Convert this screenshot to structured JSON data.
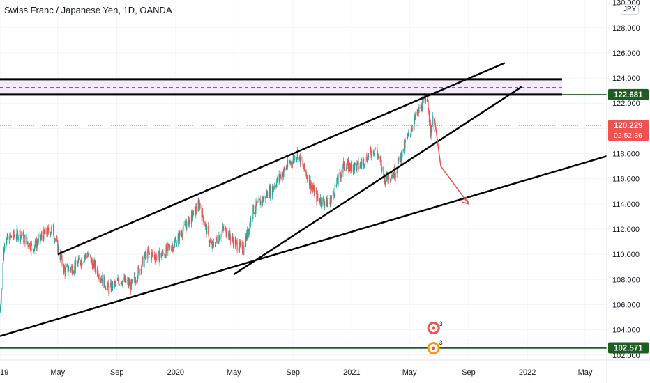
{
  "chart_data": {
    "type": "candlestick",
    "title": "Swiss Franc / Japanese Yen, 1D, OANDA",
    "currency_badge": "JPY",
    "y_range": [
      101.6,
      130.2
    ],
    "x_range": [
      "2019-01-01",
      "2022-06-15"
    ],
    "y_ticks": [
      "128.000",
      "126.000",
      "124.000",
      "122.000",
      "120.000",
      "118.000",
      "116.000",
      "114.000",
      "112.000",
      "110.000",
      "108.000",
      "106.000",
      "104.000",
      "102.000"
    ],
    "y_top_label": "130.000",
    "x_ticks": [
      {
        "label": "19",
        "date": "2019-01-01"
      },
      {
        "label": "May",
        "date": "2019-05-01"
      },
      {
        "label": "Sep",
        "date": "2019-09-01"
      },
      {
        "label": "2020",
        "date": "2020-01-01"
      },
      {
        "label": "May",
        "date": "2020-05-01"
      },
      {
        "label": "Sep",
        "date": "2020-09-01"
      },
      {
        "label": "2021",
        "date": "2021-01-01"
      },
      {
        "label": "May",
        "date": "2021-05-01"
      },
      {
        "label": "Sep",
        "date": "2021-09-01"
      },
      {
        "label": "2022",
        "date": "2022-01-01"
      },
      {
        "label": "May",
        "date": "2022-05-01"
      }
    ],
    "price_path": [
      [
        "2019-01-01",
        105.5
      ],
      [
        "2019-01-10",
        111.0
      ],
      [
        "2019-02-10",
        111.7
      ],
      [
        "2019-03-10",
        110.5
      ],
      [
        "2019-04-01",
        111.5
      ],
      [
        "2019-04-20",
        112.0
      ],
      [
        "2019-05-15",
        108.7
      ],
      [
        "2019-06-05",
        109.0
      ],
      [
        "2019-07-01",
        110.0
      ],
      [
        "2019-08-15",
        107.2
      ],
      [
        "2019-09-10",
        108.0
      ],
      [
        "2019-10-01",
        107.5
      ],
      [
        "2019-11-01",
        110.0
      ],
      [
        "2019-12-01",
        109.8
      ],
      [
        "2020-01-01",
        111.0
      ],
      [
        "2020-02-20",
        114.0
      ],
      [
        "2020-03-15",
        110.5
      ],
      [
        "2020-04-10",
        112.0
      ],
      [
        "2020-05-01",
        111.0
      ],
      [
        "2020-05-20",
        110.3
      ],
      [
        "2020-06-10",
        113.5
      ],
      [
        "2020-07-15",
        115.0
      ],
      [
        "2020-08-20",
        117.0
      ],
      [
        "2020-09-10",
        118.0
      ],
      [
        "2020-10-20",
        114.5
      ],
      [
        "2020-11-15",
        114.0
      ],
      [
        "2020-12-15",
        117.0
      ],
      [
        "2021-01-15",
        117.0
      ],
      [
        "2021-02-20",
        118.5
      ],
      [
        "2021-03-10",
        116.0
      ],
      [
        "2021-04-01",
        116.5
      ],
      [
        "2021-04-25",
        119.0
      ],
      [
        "2021-05-15",
        121.0
      ],
      [
        "2021-06-01",
        122.2
      ],
      [
        "2021-06-08",
        122.7
      ],
      [
        "2021-06-12",
        119.3
      ],
      [
        "2021-06-18",
        120.6
      ],
      [
        "2021-06-22",
        120.2
      ]
    ],
    "horizontal_levels": [
      {
        "name": "resistance-top",
        "value": 123.9,
        "color": "#000000"
      },
      {
        "name": "resistance-bottom",
        "value": 122.681,
        "color": "#000000"
      },
      {
        "name": "dashed-mid",
        "value": 123.25,
        "color": "#2962ff"
      },
      {
        "name": "support-bottom",
        "value": 102.571,
        "color": "#1b5e20"
      }
    ],
    "trend_lines": [
      {
        "name": "channel-upper",
        "from": [
          "2019-05-01",
          110.0
        ],
        "to": [
          "2021-11-15",
          125.2
        ]
      },
      {
        "name": "channel-lower",
        "from": [
          "2020-05-01",
          108.4
        ],
        "to": [
          "2021-12-20",
          123.3
        ]
      },
      {
        "name": "long-support",
        "from": [
          "2019-01-01",
          103.5
        ],
        "to": [
          "2022-06-15",
          117.8
        ]
      }
    ],
    "projection": [
      [
        "2021-06-22",
        120.8
      ],
      [
        "2021-07-05",
        117.0
      ],
      [
        "2021-09-01",
        114.0
      ]
    ],
    "price_labels": [
      {
        "text": "122.681",
        "value": 122.681,
        "bg": "#1b5e20",
        "fg": "#ffffff"
      },
      {
        "text": "120.229",
        "value": 120.229,
        "bg": "#ef5350",
        "fg": "#ffffff",
        "sub": "02:52:36"
      },
      {
        "text": "102.571",
        "value": 102.571,
        "bg": "#1b5e20",
        "fg": "#ffffff"
      }
    ],
    "events": [
      {
        "date": "2021-06-20",
        "label": "3",
        "kind": "earnings-red"
      },
      {
        "date": "2021-06-20",
        "label": "3",
        "kind": "earnings-orange"
      }
    ],
    "colors": {
      "up": "#26a69a",
      "down": "#ef5350",
      "grid": "#f0f3fa",
      "axis_text": "#131722"
    }
  }
}
